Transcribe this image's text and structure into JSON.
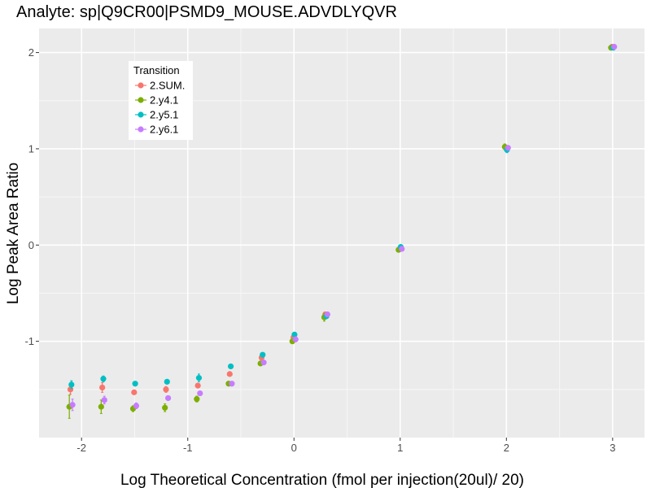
{
  "chart_data": {
    "type": "scatter",
    "title": "Analyte: sp|Q9CR00|PSMD9_MOUSE.ADVDLYQVR",
    "xlabel": "Log Theoretical Concentration (fmol per injection(20ul)/ 20)",
    "ylabel": "Log Peak Area Ratio",
    "xlim": [
      -2.4,
      3.3
    ],
    "ylim": [
      -2.0,
      2.25
    ],
    "x_ticks": [
      -2,
      -1,
      0,
      1,
      2,
      3
    ],
    "x_tick_labels": [
      "-2",
      "-1",
      "0",
      "1",
      "2",
      "3"
    ],
    "y_ticks": [
      -1,
      0,
      1,
      2
    ],
    "y_tick_labels": [
      "-1",
      "0",
      "1",
      "2"
    ],
    "grid": true,
    "legend": {
      "title": "Transition",
      "placement": "top-left"
    },
    "series": [
      {
        "name": "2.SUM.",
        "color": "#F8766D",
        "points": [
          {
            "x": -2.105,
            "y": -1.5,
            "err": 0.05
          },
          {
            "x": -1.805,
            "y": -1.48,
            "err": 0.05
          },
          {
            "x": -1.505,
            "y": -1.53,
            "err": 0.02
          },
          {
            "x": -1.205,
            "y": -1.5,
            "err": 0.03
          },
          {
            "x": -0.905,
            "y": -1.46,
            "err": 0.02
          },
          {
            "x": -0.605,
            "y": -1.34,
            "err": 0.02
          },
          {
            "x": -0.305,
            "y": -1.17,
            "err": 0.02
          },
          {
            "x": -0.005,
            "y": -0.96,
            "err": 0.02
          },
          {
            "x": 0.295,
            "y": -0.72,
            "err": 0.02
          },
          {
            "x": 0.995,
            "y": -0.04,
            "err": 0.02
          },
          {
            "x": 1.995,
            "y": 1.01,
            "err": 0.02
          },
          {
            "x": 2.995,
            "y": 2.06,
            "err": 0.01
          }
        ]
      },
      {
        "name": "2.y4.1",
        "color": "#7CAE00",
        "points": [
          {
            "x": -2.115,
            "y": -1.68,
            "err": 0.12
          },
          {
            "x": -1.815,
            "y": -1.68,
            "err": 0.07
          },
          {
            "x": -1.515,
            "y": -1.7,
            "err": 0.03
          },
          {
            "x": -1.215,
            "y": -1.69,
            "err": 0.04
          },
          {
            "x": -0.915,
            "y": -1.6,
            "err": 0.03
          },
          {
            "x": -0.615,
            "y": -1.44,
            "err": 0.02
          },
          {
            "x": -0.315,
            "y": -1.23,
            "err": 0.02
          },
          {
            "x": -0.015,
            "y": -1.0,
            "err": 0.02
          },
          {
            "x": 0.285,
            "y": -0.75,
            "err": 0.04
          },
          {
            "x": 0.985,
            "y": -0.05,
            "err": 0.02
          },
          {
            "x": 1.985,
            "y": 1.02,
            "err": 0.03
          },
          {
            "x": 2.985,
            "y": 2.05,
            "err": 0.01
          }
        ]
      },
      {
        "name": "2.y5.1",
        "color": "#00BFC4",
        "points": [
          {
            "x": -2.095,
            "y": -1.45,
            "err": 0.04
          },
          {
            "x": -1.795,
            "y": -1.39,
            "err": 0.03
          },
          {
            "x": -1.495,
            "y": -1.44,
            "err": 0.02
          },
          {
            "x": -1.195,
            "y": -1.42,
            "err": 0.02
          },
          {
            "x": -0.895,
            "y": -1.38,
            "err": 0.04
          },
          {
            "x": -0.595,
            "y": -1.26,
            "err": 0.02
          },
          {
            "x": -0.295,
            "y": -1.14,
            "err": 0.02
          },
          {
            "x": 0.005,
            "y": -0.93,
            "err": 0.02
          },
          {
            "x": 0.305,
            "y": -0.74,
            "err": 0.02
          },
          {
            "x": 1.005,
            "y": -0.02,
            "err": 0.02
          },
          {
            "x": 2.005,
            "y": 0.99,
            "err": 0.03
          },
          {
            "x": 3.005,
            "y": 2.05,
            "err": 0.02
          }
        ]
      },
      {
        "name": "2.y6.1",
        "color": "#C77CFF",
        "points": [
          {
            "x": -2.085,
            "y": -1.66,
            "err": 0.06
          },
          {
            "x": -1.785,
            "y": -1.61,
            "err": 0.04
          },
          {
            "x": -1.485,
            "y": -1.67,
            "err": 0.03
          },
          {
            "x": -1.185,
            "y": -1.59,
            "err": 0.02
          },
          {
            "x": -0.885,
            "y": -1.54,
            "err": 0.02
          },
          {
            "x": -0.585,
            "y": -1.44,
            "err": 0.02
          },
          {
            "x": -0.285,
            "y": -1.22,
            "err": 0.02
          },
          {
            "x": 0.015,
            "y": -0.98,
            "err": 0.02
          },
          {
            "x": 0.315,
            "y": -0.72,
            "err": 0.02
          },
          {
            "x": 1.015,
            "y": -0.04,
            "err": 0.02
          },
          {
            "x": 2.015,
            "y": 1.01,
            "err": 0.02
          },
          {
            "x": 3.015,
            "y": 2.06,
            "err": 0.01
          }
        ]
      }
    ]
  }
}
